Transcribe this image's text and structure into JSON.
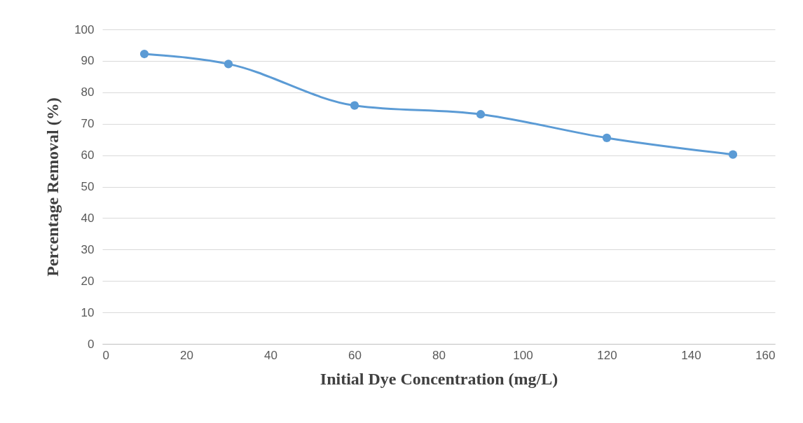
{
  "chart_data": {
    "type": "line",
    "xlabel": "Initial Dye Concentration (mg/L)",
    "ylabel": "Percentage Removal (%)",
    "x": [
      10,
      30,
      60,
      90,
      120,
      150
    ],
    "series": [
      {
        "color": "#5b9bd5",
        "values": [
          92.2,
          89,
          75.8,
          73,
          65.5,
          60.2
        ]
      }
    ],
    "xlim": [
      0,
      160
    ],
    "xticks": [
      0,
      20,
      40,
      60,
      80,
      100,
      120,
      140,
      160
    ],
    "ylim": [
      0,
      100
    ],
    "yticks": [
      0,
      10,
      20,
      30,
      40,
      50,
      60,
      70,
      80,
      90,
      100
    ],
    "grid": "y",
    "marker": "circle",
    "line_style": "solid",
    "legend": false
  }
}
